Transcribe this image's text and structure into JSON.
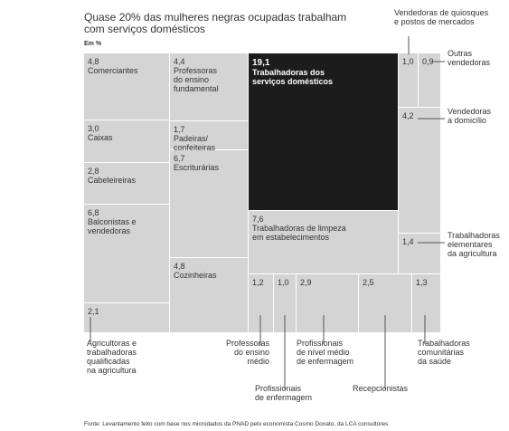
{
  "header": {
    "title": "Quase 20% das mulheres negras ocupadas trabalham com serviços domésticos",
    "unit": "Em %"
  },
  "chart_data": {
    "type": "treemap",
    "title": "Quase 20% das mulheres negras ocupadas trabalham com serviços domésticos",
    "unit": "Em %",
    "items": [
      {
        "name": "Comerciantes",
        "value": 4.8,
        "value_label": "4,8",
        "label_lines": [
          "Comerciantes"
        ]
      },
      {
        "name": "Caixas",
        "value": 3.0,
        "value_label": "3,0",
        "label_lines": [
          "Caixas"
        ]
      },
      {
        "name": "Cabeleireiras",
        "value": 2.8,
        "value_label": "2,8",
        "label_lines": [
          "Cabeleireiras"
        ]
      },
      {
        "name": "Balconistas e vendedoras",
        "value": 6.8,
        "value_label": "6,8",
        "label_lines": [
          "Balconistas e",
          "vendedoras"
        ]
      },
      {
        "name": "Agricultoras e trabalhadoras qualificadas na agricultura",
        "value": 2.1,
        "value_label": "2,1",
        "label_lines": [
          "Agricultoras e",
          "trabalhadoras",
          "qualificadas",
          "na agricultura"
        ]
      },
      {
        "name": "Professoras do ensino fundamental",
        "value": 4.4,
        "value_label": "4,4",
        "label_lines": [
          "Professoras",
          "do ensino",
          "fundamental"
        ]
      },
      {
        "name": "Padeiras/confeiteiras",
        "value": 1.7,
        "value_label": "1,7",
        "label_lines": [
          "Padeiras/",
          "confeiteiras"
        ]
      },
      {
        "name": "Escriturárias",
        "value": 6.7,
        "value_label": "6,7",
        "label_lines": [
          "Escriturárias"
        ]
      },
      {
        "name": "Cozinheiras",
        "value": 4.8,
        "value_label": "4,8",
        "label_lines": [
          "Cozinheiras"
        ]
      },
      {
        "name": "Trabalhadoras dos serviços domésticos",
        "value": 19.1,
        "value_label": "19,1",
        "label_lines": [
          "Trabalhadoras dos",
          "serviços domésticos"
        ],
        "highlight": true
      },
      {
        "name": "Trabalhadoras de limpeza em estabelecimentos",
        "value": 7.6,
        "value_label": "7,6",
        "label_lines": [
          "Trabalhadoras de limpeza",
          "em estabelecimentos"
        ]
      },
      {
        "name": "Professoras ensino médio",
        "value": 1.2,
        "value_label": "1,2",
        "label_lines": [
          "Professoras",
          "do ensino",
          "médio"
        ]
      },
      {
        "name": "Profissionais de enfermagem",
        "value": 1.0,
        "value_label": "1,0",
        "label_lines": [
          "Profissionais",
          "de enfermagem"
        ]
      },
      {
        "name": "Profissionais de nível médio de enfermagem",
        "value": 2.9,
        "value_label": "2,9",
        "label_lines": [
          "Profissionais",
          "de nível médio",
          "de enfermagem"
        ]
      },
      {
        "name": "Recepcionistas",
        "value": 2.5,
        "value_label": "2,5",
        "label_lines": [
          "Recepcionistas"
        ]
      },
      {
        "name": "Trabalhadoras comunitárias da saúde",
        "value": 1.3,
        "value_label": "1,3",
        "label_lines": [
          "Trabalhadoras",
          "comunitárias",
          "da saúde"
        ]
      },
      {
        "name": "Vendedoras de quiosques e postos de mercados",
        "value": 1.0,
        "value_label": "1,0",
        "label_lines": [
          "Vendedoras de quiosques",
          "e postos de mercados"
        ]
      },
      {
        "name": "Outras vendedoras",
        "value": 0.9,
        "value_label": "0,9",
        "label_lines": [
          "Outras",
          "vendedoras"
        ]
      },
      {
        "name": "Vendedoras a domicílio",
        "value": 4.2,
        "value_label": "4,2",
        "label_lines": [
          "Vendedoras",
          "a domicílio"
        ]
      },
      {
        "name": "Trabalhadoras elementares da agricultura",
        "value": 1.4,
        "value_label": "1,4",
        "label_lines": [
          "Trabalhadoras",
          "elementares",
          "da agricultura"
        ]
      }
    ]
  },
  "footer": {
    "source": "Fonte: Levantamento feito com base nos microdados da PNAD pelo economista Cosmo Donato, da LCA consultores"
  },
  "colors": {
    "cell": "#d4d4d4",
    "highlight": "#1c1c1c",
    "leader": "#555555",
    "text": "#333333"
  }
}
